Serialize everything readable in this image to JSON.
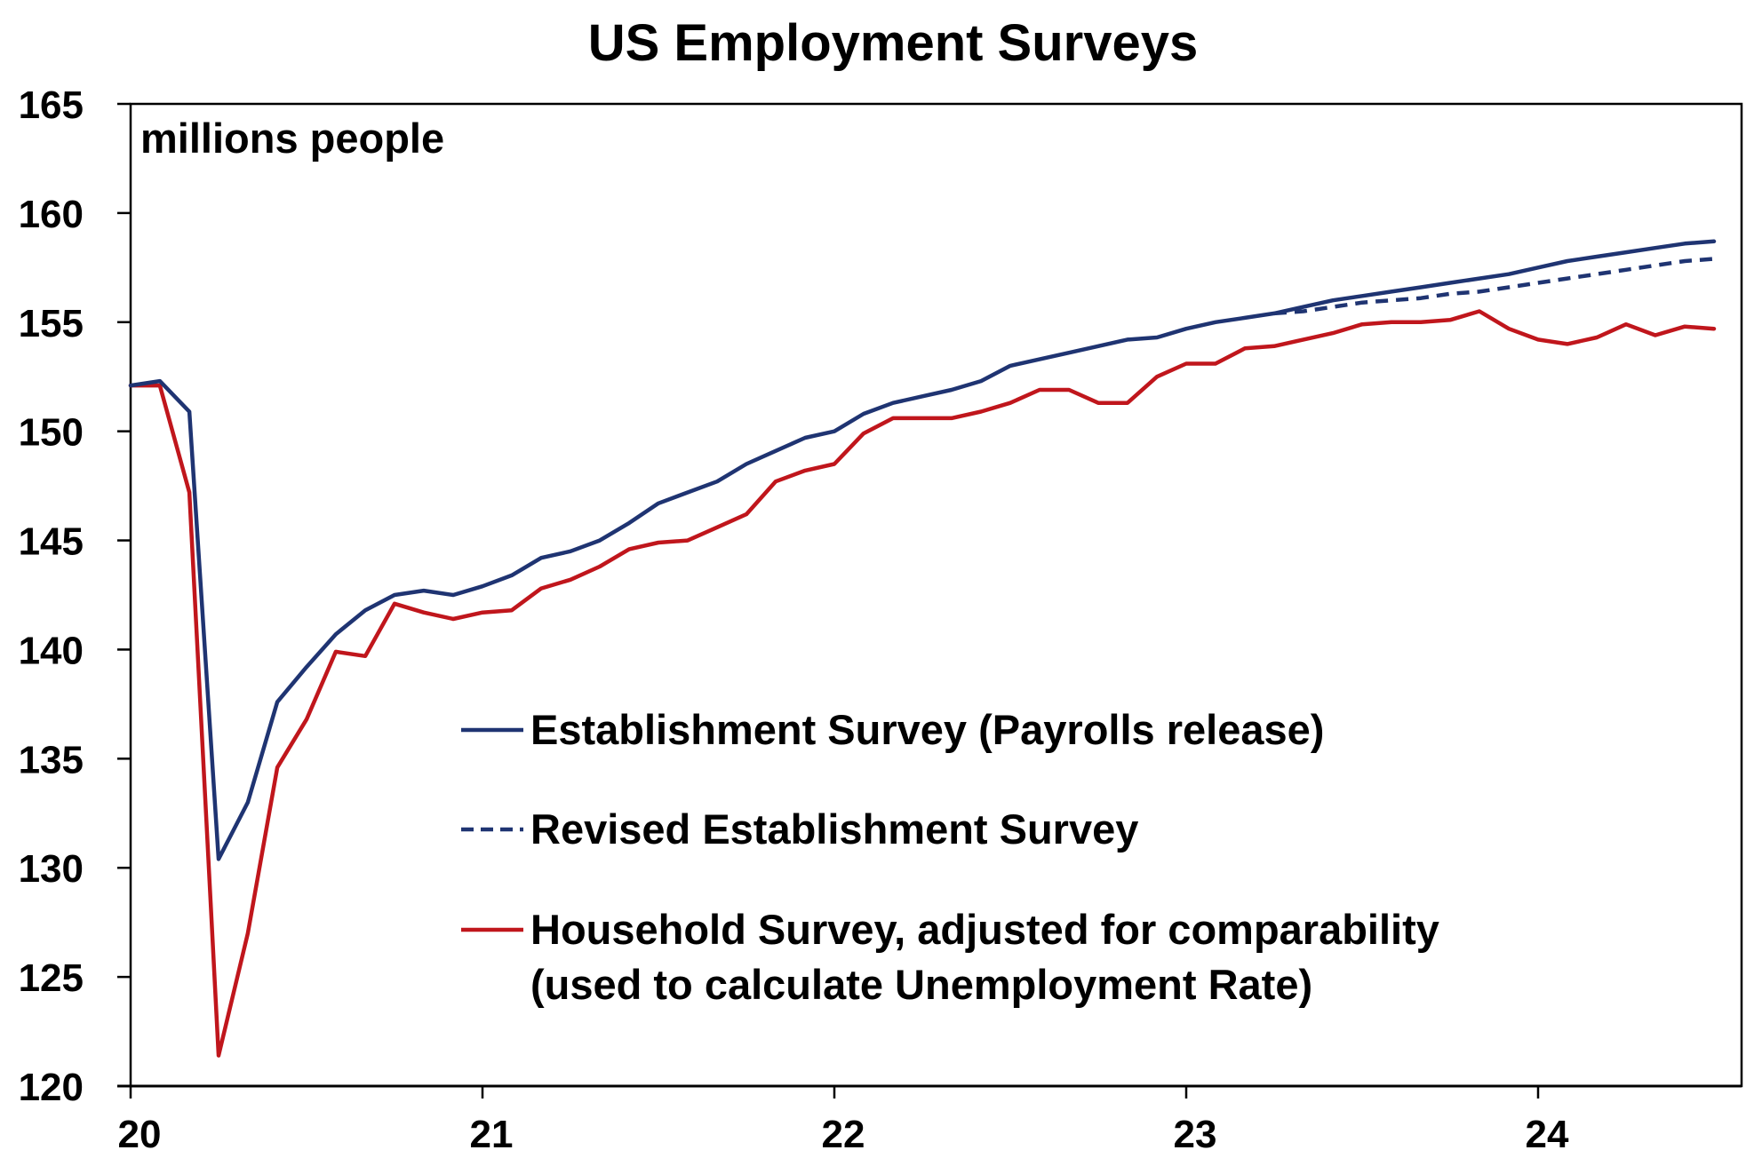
{
  "chart_data": {
    "type": "line",
    "title": "US Employment Surveys",
    "unit_label": "millions people",
    "xlabel": "",
    "ylabel": "",
    "ylim": [
      120,
      165
    ],
    "xlim": [
      2020,
      2024.6
    ],
    "y_ticks": [
      120,
      125,
      130,
      135,
      140,
      145,
      150,
      155,
      160,
      165
    ],
    "x_ticks": [
      {
        "value": 2020,
        "label": "20"
      },
      {
        "value": 2021,
        "label": "21"
      },
      {
        "value": 2022,
        "label": "22"
      },
      {
        "value": 2023,
        "label": "23"
      },
      {
        "value": 2024,
        "label": "24"
      }
    ],
    "grid": false,
    "legend_position": "center-right",
    "series": [
      {
        "key": "establishment",
        "name": "Establishment Survey (Payrolls release)",
        "color": "#1f3472",
        "dash": "solid",
        "x": [
          2020.0,
          2020.083,
          2020.167,
          2020.25,
          2020.333,
          2020.417,
          2020.5,
          2020.583,
          2020.667,
          2020.75,
          2020.833,
          2020.917,
          2021.0,
          2021.083,
          2021.167,
          2021.25,
          2021.333,
          2021.417,
          2021.5,
          2021.583,
          2021.667,
          2021.75,
          2021.833,
          2021.917,
          2022.0,
          2022.083,
          2022.167,
          2022.25,
          2022.333,
          2022.417,
          2022.5,
          2022.583,
          2022.667,
          2022.75,
          2022.833,
          2022.917,
          2023.0,
          2023.083,
          2023.167,
          2023.25,
          2023.333,
          2023.417,
          2023.5,
          2023.583,
          2023.667,
          2023.75,
          2023.833,
          2023.917,
          2024.0,
          2024.083,
          2024.167,
          2024.25,
          2024.333,
          2024.417,
          2024.5
        ],
        "y": [
          152.1,
          152.3,
          150.9,
          130.4,
          133.0,
          137.6,
          139.2,
          140.7,
          141.8,
          142.5,
          142.7,
          142.5,
          142.9,
          143.4,
          144.2,
          144.5,
          145.0,
          145.8,
          146.7,
          147.2,
          147.7,
          148.5,
          149.1,
          149.7,
          150.0,
          150.8,
          151.3,
          151.6,
          151.9,
          152.3,
          153.0,
          153.3,
          153.6,
          153.9,
          154.2,
          154.3,
          154.7,
          155.0,
          155.2,
          155.4,
          155.7,
          156.0,
          156.2,
          156.4,
          156.6,
          156.8,
          157.0,
          157.2,
          157.5,
          157.8,
          158.0,
          158.2,
          158.4,
          158.6,
          158.7
        ]
      },
      {
        "key": "revised",
        "name": "Revised Establishment Survey",
        "color": "#1f3472",
        "dash": "dashed",
        "x": [
          2023.25,
          2023.333,
          2023.417,
          2023.5,
          2023.583,
          2023.667,
          2023.75,
          2023.833,
          2023.917,
          2024.0,
          2024.083,
          2024.167,
          2024.25,
          2024.333,
          2024.417,
          2024.5
        ],
        "y": [
          155.4,
          155.5,
          155.7,
          155.9,
          156.0,
          156.1,
          156.3,
          156.4,
          156.6,
          156.8,
          157.0,
          157.2,
          157.4,
          157.6,
          157.8,
          157.9
        ]
      },
      {
        "key": "household",
        "name": "Household Survey, adjusted for comparability (used to calculate Unemployment Rate)",
        "name_lines": [
          "Household Survey, adjusted for comparability",
          "(used to calculate Unemployment Rate)"
        ],
        "color": "#c0161c",
        "dash": "solid",
        "x": [
          2020.0,
          2020.083,
          2020.167,
          2020.25,
          2020.333,
          2020.417,
          2020.5,
          2020.583,
          2020.667,
          2020.75,
          2020.833,
          2020.917,
          2021.0,
          2021.083,
          2021.167,
          2021.25,
          2021.333,
          2021.417,
          2021.5,
          2021.583,
          2021.667,
          2021.75,
          2021.833,
          2021.917,
          2022.0,
          2022.083,
          2022.167,
          2022.25,
          2022.333,
          2022.417,
          2022.5,
          2022.583,
          2022.667,
          2022.75,
          2022.833,
          2022.917,
          2023.0,
          2023.083,
          2023.167,
          2023.25,
          2023.333,
          2023.417,
          2023.5,
          2023.583,
          2023.667,
          2023.75,
          2023.833,
          2023.917,
          2024.0,
          2024.083,
          2024.167,
          2024.25,
          2024.333,
          2024.417,
          2024.5
        ],
        "y": [
          152.1,
          152.1,
          147.2,
          121.4,
          127.0,
          134.6,
          136.8,
          139.9,
          139.7,
          142.1,
          141.7,
          141.4,
          141.7,
          141.8,
          142.8,
          143.2,
          143.8,
          144.6,
          144.9,
          145.0,
          145.6,
          146.2,
          147.7,
          148.2,
          148.5,
          149.9,
          150.6,
          150.6,
          150.6,
          150.9,
          151.3,
          151.9,
          151.9,
          151.3,
          151.3,
          152.5,
          153.1,
          153.1,
          153.8,
          153.9,
          154.2,
          154.5,
          154.9,
          155.0,
          155.0,
          155.1,
          155.5,
          154.7,
          154.2,
          154.0,
          154.3,
          154.9,
          154.4,
          154.8,
          154.7
        ]
      }
    ]
  }
}
